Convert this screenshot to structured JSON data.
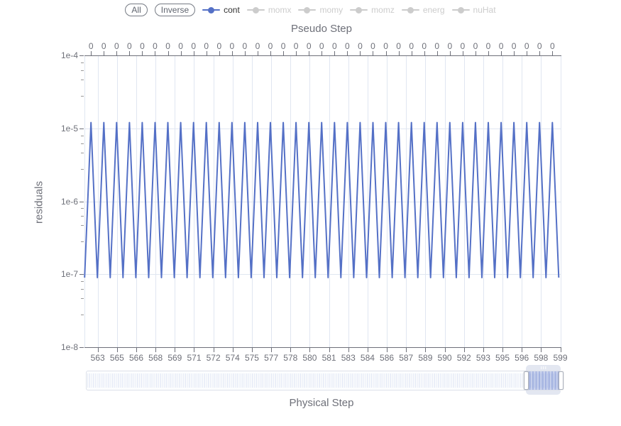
{
  "legend": {
    "selector_buttons": [
      {
        "label": "All"
      },
      {
        "label": "Inverse"
      }
    ]
  },
  "chart_data": {
    "type": "line",
    "title": "Pseudo Step",
    "xlabel": "Physical Step",
    "ylabel": "residuals",
    "legend_position": "top",
    "grid": true,
    "y_axis": {
      "scale": "log",
      "range": [
        1e-08,
        0.0001
      ],
      "tick_labels": [
        "1e-4",
        "1e-5",
        "1e-6",
        "1e-7",
        "1e-8"
      ]
    },
    "top_axis": {
      "tick_label": "0",
      "tick_count": 37
    },
    "bottom_axis": {
      "tick_labels": [
        "563",
        "565",
        "566",
        "568",
        "569",
        "571",
        "572",
        "574",
        "575",
        "577",
        "578",
        "580",
        "581",
        "583",
        "584",
        "586",
        "587",
        "589",
        "590",
        "592",
        "593",
        "595",
        "596",
        "598",
        "599"
      ]
    },
    "series": [
      {
        "name": "cont",
        "color": "#5470c6",
        "visible": true,
        "pattern": "triangle-wave",
        "cycles": 37,
        "peak_value": 1.2e-05,
        "trough_value": 9e-08
      },
      {
        "name": "momx",
        "color": "#cccccc",
        "visible": false
      },
      {
        "name": "momy",
        "color": "#cccccc",
        "visible": false
      },
      {
        "name": "momz",
        "color": "#cccccc",
        "visible": false
      },
      {
        "name": "energ",
        "color": "#cccccc",
        "visible": false
      },
      {
        "name": "nuHat",
        "color": "#cccccc",
        "visible": false
      }
    ]
  },
  "range_slider": {
    "selection_start_frac": 0.927,
    "selection_end_frac": 1.0
  },
  "colors": {
    "accent": "#5470c6",
    "axis": "#6E7079",
    "grid": "#E0E6F1",
    "inactive_legend": "#cccccc",
    "slider_fill": "rgba(84,112,198,0.30)"
  }
}
